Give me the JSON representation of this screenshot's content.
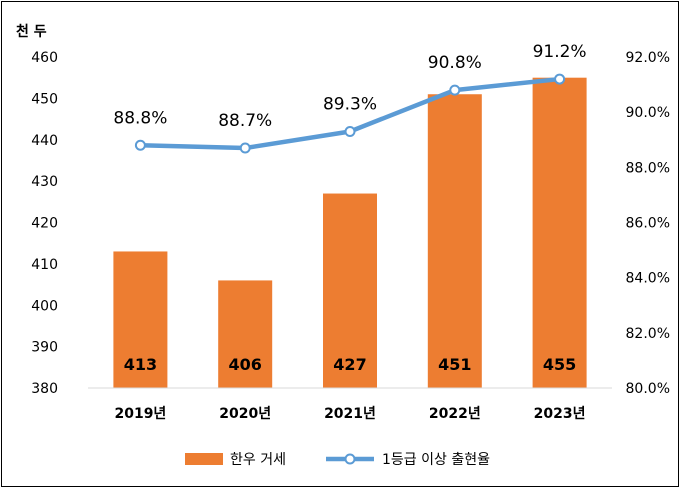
{
  "chart_data": {
    "type": "bar+line",
    "categories": [
      "2019년",
      "2020년",
      "2021년",
      "2022년",
      "2023년"
    ],
    "y_unit_label": "천 두",
    "y_left": {
      "min": 380,
      "max": 460,
      "ticks": [
        380,
        390,
        400,
        410,
        420,
        430,
        440,
        450,
        460
      ]
    },
    "y_right": {
      "min": 80,
      "max": 92,
      "ticks": [
        "80.0%",
        "82.0%",
        "84.0%",
        "86.0%",
        "88.0%",
        "90.0%",
        "92.0%"
      ]
    },
    "series": [
      {
        "name": "한우 거세",
        "kind": "bar",
        "axis": "left",
        "color": "#ED7D31",
        "values": [
          413,
          406,
          427,
          451,
          455
        ],
        "labels": [
          "413",
          "406",
          "427",
          "451",
          "455"
        ]
      },
      {
        "name": "1등급 이상 출현율",
        "kind": "line",
        "axis": "right",
        "color": "#5B9BD5",
        "values": [
          88.8,
          88.7,
          89.3,
          90.8,
          91.2
        ],
        "labels": [
          "88.8%",
          "88.7%",
          "89.3%",
          "90.8%",
          "91.2%"
        ]
      }
    ],
    "grid": false,
    "legend": "bottom"
  }
}
